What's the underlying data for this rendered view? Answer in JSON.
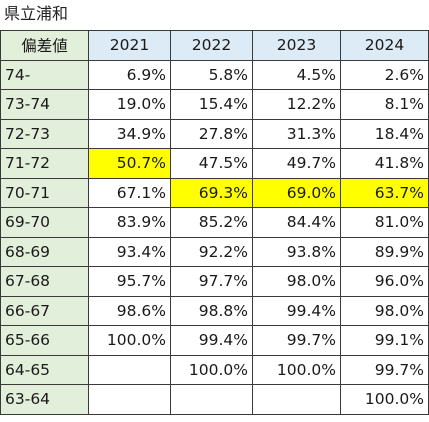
{
  "title": "県立浦和",
  "header": {
    "label": "偏差値",
    "years": [
      "2021",
      "2022",
      "2023",
      "2024"
    ]
  },
  "highlight_color": "#ffff00",
  "label_bg_color": "#e2efda",
  "year_header_bg_color": "#ddebf7",
  "rows": [
    {
      "label": "74-",
      "values": [
        "6.9%",
        "5.8%",
        "4.5%",
        "2.6%"
      ],
      "highlight": [
        false,
        false,
        false,
        false
      ]
    },
    {
      "label": "73-74",
      "values": [
        "19.0%",
        "15.4%",
        "12.2%",
        "8.1%"
      ],
      "highlight": [
        false,
        false,
        false,
        false
      ]
    },
    {
      "label": "72-73",
      "values": [
        "34.9%",
        "27.8%",
        "31.3%",
        "18.4%"
      ],
      "highlight": [
        false,
        false,
        false,
        false
      ]
    },
    {
      "label": "71-72",
      "values": [
        "50.7%",
        "47.5%",
        "49.7%",
        "41.8%"
      ],
      "highlight": [
        true,
        false,
        false,
        false
      ]
    },
    {
      "label": "70-71",
      "values": [
        "67.1%",
        "69.3%",
        "69.0%",
        "63.7%"
      ],
      "highlight": [
        false,
        true,
        true,
        true
      ]
    },
    {
      "label": "69-70",
      "values": [
        "83.9%",
        "85.2%",
        "84.4%",
        "81.0%"
      ],
      "highlight": [
        false,
        false,
        false,
        false
      ]
    },
    {
      "label": "68-69",
      "values": [
        "93.4%",
        "92.2%",
        "93.8%",
        "89.9%"
      ],
      "highlight": [
        false,
        false,
        false,
        false
      ]
    },
    {
      "label": "67-68",
      "values": [
        "95.7%",
        "97.7%",
        "98.0%",
        "96.0%"
      ],
      "highlight": [
        false,
        false,
        false,
        false
      ]
    },
    {
      "label": "66-67",
      "values": [
        "98.6%",
        "98.8%",
        "99.4%",
        "98.0%"
      ],
      "highlight": [
        false,
        false,
        false,
        false
      ]
    },
    {
      "label": "65-66",
      "values": [
        "100.0%",
        "99.4%",
        "99.7%",
        "99.1%"
      ],
      "highlight": [
        false,
        false,
        false,
        false
      ]
    },
    {
      "label": "64-65",
      "values": [
        "",
        "100.0%",
        "100.0%",
        "99.7%"
      ],
      "highlight": [
        false,
        false,
        false,
        false
      ]
    },
    {
      "label": "63-64",
      "values": [
        "",
        "",
        "",
        "100.0%"
      ],
      "highlight": [
        false,
        false,
        false,
        false
      ]
    }
  ]
}
